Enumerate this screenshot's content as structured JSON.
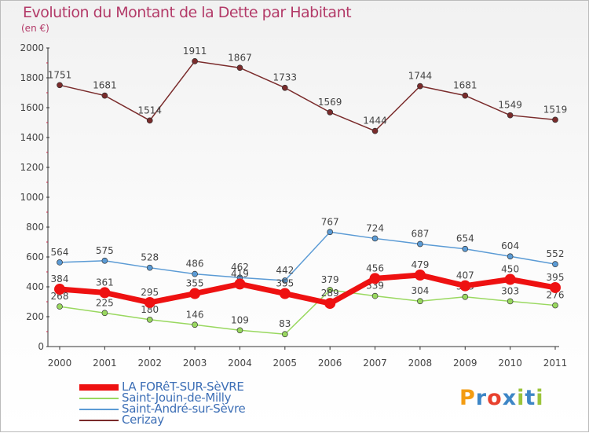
{
  "title": "Evolution du Montant de la Dette par Habitant",
  "unit": "(en €)",
  "logo": {
    "letters": [
      "P",
      "r",
      "o",
      "x",
      "i",
      "t",
      "i"
    ],
    "colors": [
      "#f39c12",
      "#3d86c6",
      "#e8412e",
      "#3d86c6",
      "#9bc43a",
      "#3d86c6",
      "#9bc43a"
    ]
  },
  "chart_data": {
    "type": "line",
    "x": [
      "2000",
      "2001",
      "2002",
      "2003",
      "2004",
      "2005",
      "2006",
      "2007",
      "2008",
      "2009",
      "2010",
      "2011"
    ],
    "ylim": [
      0,
      2000
    ],
    "yticks": [
      0,
      200,
      400,
      600,
      800,
      1000,
      1200,
      1400,
      1600,
      1800,
      2000
    ],
    "grid": false,
    "legend_position": "bottom-left",
    "series": [
      {
        "name": "Cerizay",
        "color": "#7a2b2b",
        "values": [
          1751,
          1681,
          1514,
          1911,
          1867,
          1733,
          1569,
          1444,
          1744,
          1681,
          1549,
          1519
        ]
      },
      {
        "name": "Saint-André-sur-Sèvre",
        "color": "#5b9bd5",
        "values": [
          564,
          575,
          528,
          486,
          462,
          442,
          767,
          724,
          687,
          654,
          604,
          552
        ]
      },
      {
        "name": "Saint-Jouin-de-Milly",
        "color": "#99d85f",
        "values": [
          268,
          225,
          180,
          146,
          109,
          83,
          379,
          339,
          304,
          333,
          303,
          276
        ]
      },
      {
        "name": "LA FORêT-SUR-SèVRE",
        "color": "#ee1111",
        "values": [
          384,
          361,
          295,
          355,
          419,
          355,
          289,
          456,
          479,
          407,
          450,
          395
        ]
      }
    ]
  }
}
